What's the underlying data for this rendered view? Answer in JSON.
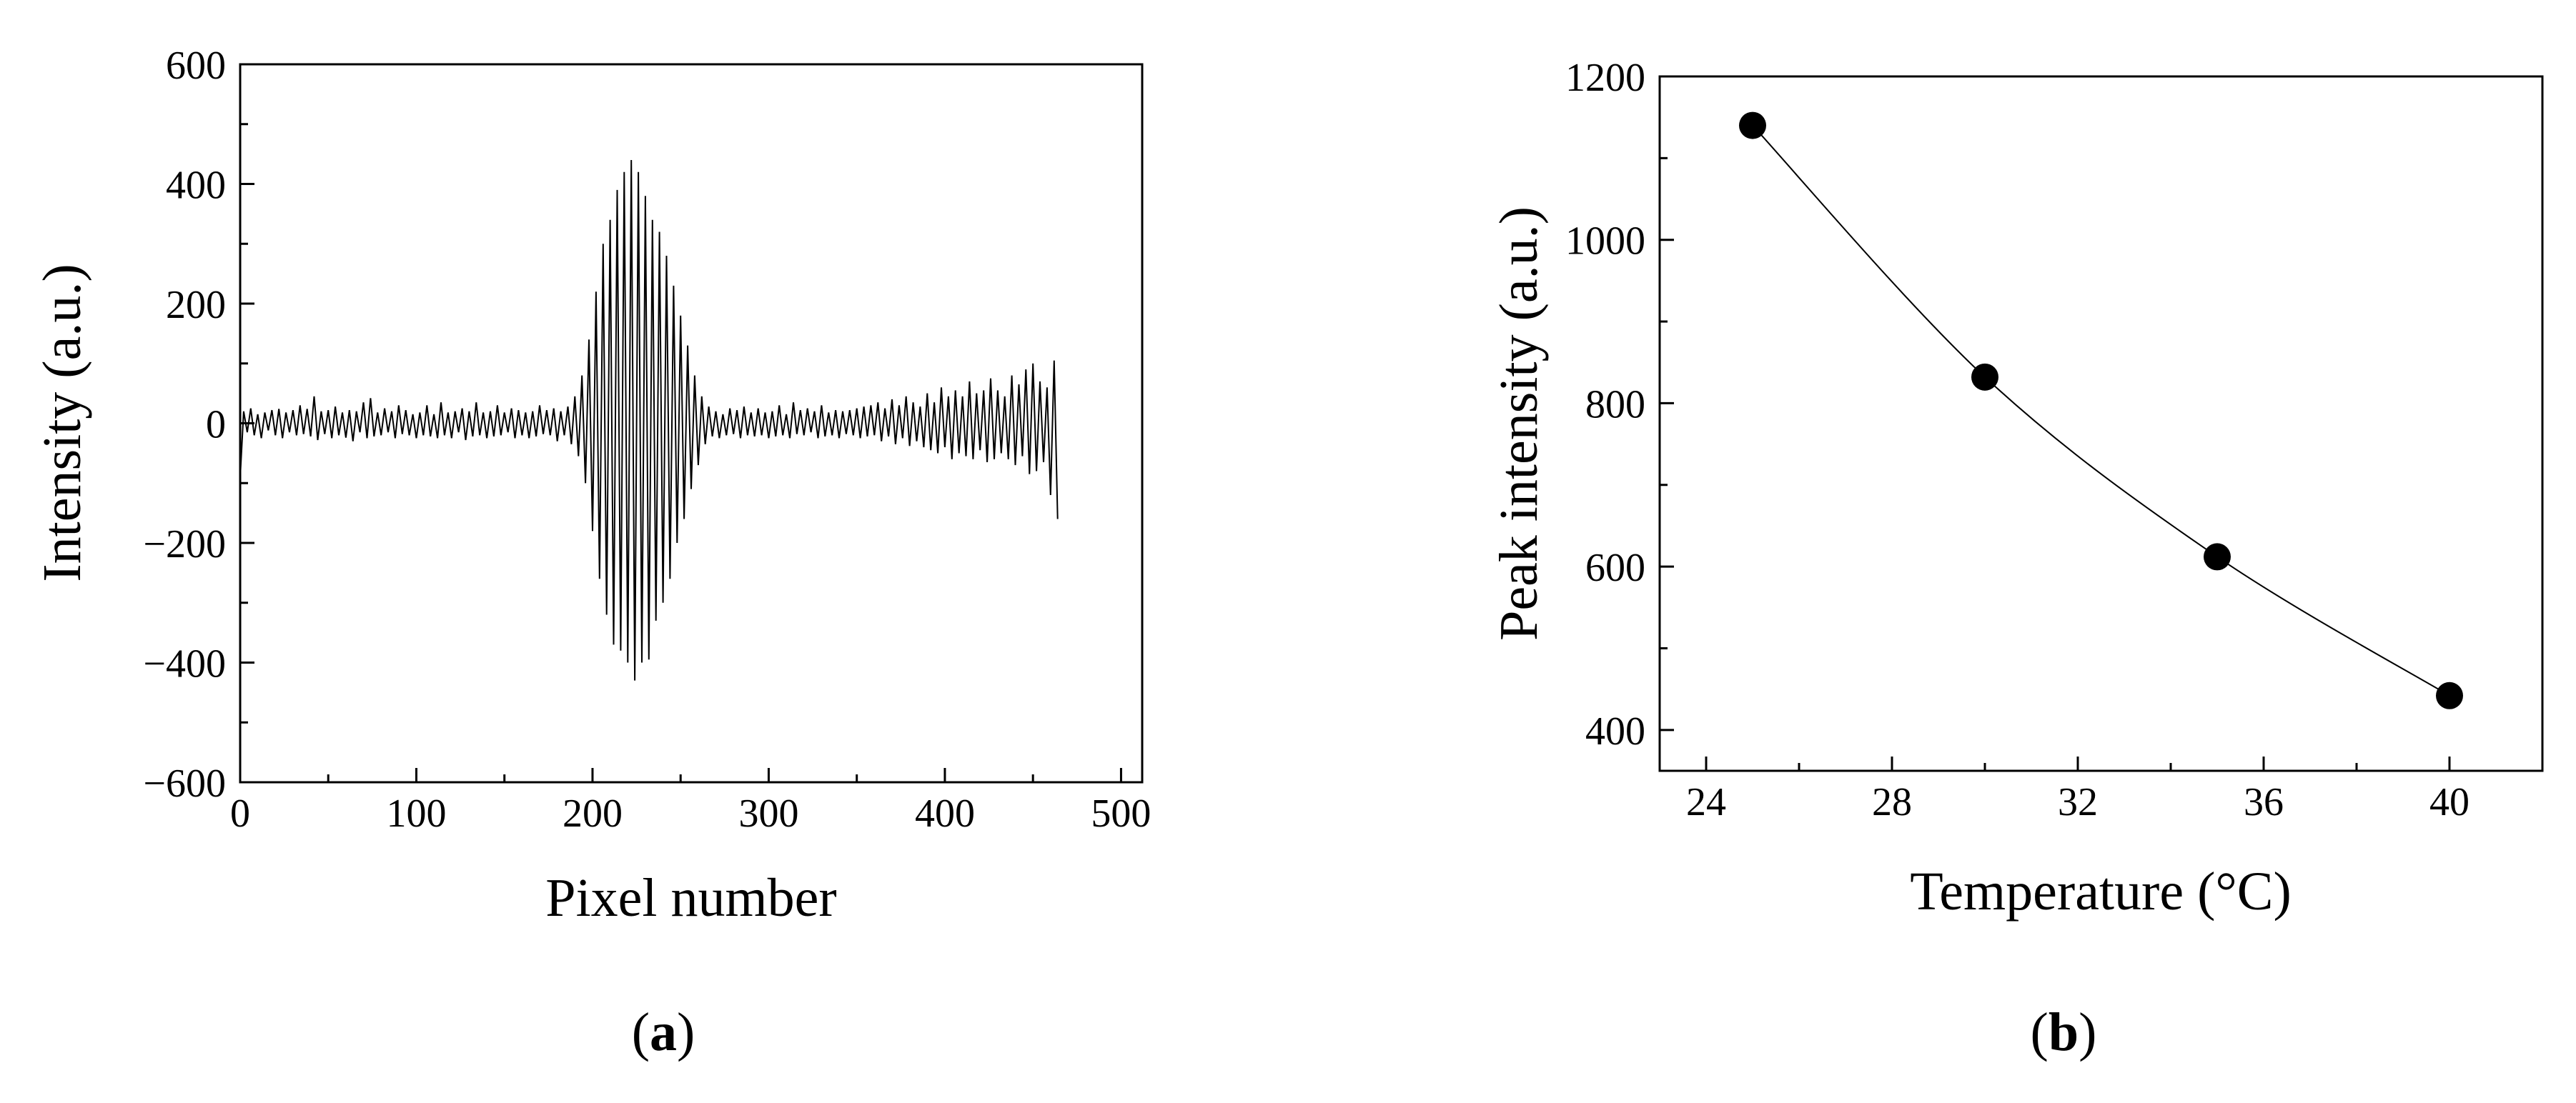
{
  "figure": {
    "panel_a_label": {
      "open": "(",
      "letter": "a",
      "close": ")"
    },
    "panel_b_label": {
      "open": "(",
      "letter": "b",
      "close": ")"
    }
  },
  "chart_data": [
    {
      "type": "line",
      "panel": "a",
      "xlabel": "Pixel number",
      "ylabel": "Intensity (a.u.)",
      "xlim": [
        0,
        512
      ],
      "ylim": [
        -600,
        600
      ],
      "xticks": [
        0,
        100,
        200,
        300,
        400,
        500
      ],
      "xtick_labels": [
        "0",
        "100",
        "200",
        "300",
        "400",
        "500"
      ],
      "yticks": [
        -600,
        -400,
        -200,
        0,
        200,
        400,
        600
      ],
      "ytick_labels": [
        "−600",
        "−400",
        "−200",
        "0",
        "200",
        "400",
        "600"
      ],
      "grid": false,
      "legend": "none",
      "series": [
        {
          "color": "#000000",
          "x_start": 0,
          "x_step": 2,
          "values": [
            -90,
            20,
            -15,
            25,
            -20,
            15,
            -25,
            18,
            -12,
            22,
            -20,
            24,
            -25,
            18,
            -15,
            22,
            -20,
            30,
            -18,
            24,
            -22,
            45,
            -28,
            20,
            -18,
            22,
            -25,
            28,
            -20,
            18,
            -24,
            22,
            -30,
            20,
            -15,
            35,
            -25,
            42,
            -22,
            18,
            -20,
            25,
            -15,
            20,
            -25,
            30,
            -18,
            22,
            -20,
            15,
            -25,
            18,
            -20,
            30,
            -22,
            15,
            -25,
            35,
            -20,
            18,
            -25,
            20,
            -15,
            25,
            -28,
            20,
            -22,
            35,
            -20,
            18,
            -25,
            20,
            -22,
            30,
            -20,
            18,
            -15,
            25,
            -25,
            22,
            -20,
            18,
            -25,
            20,
            -22,
            30,
            -18,
            22,
            -20,
            25,
            -30,
            20,
            -20,
            28,
            -35,
            45,
            -55,
            80,
            -100,
            140,
            -180,
            220,
            -260,
            300,
            -320,
            340,
            -370,
            390,
            -380,
            420,
            -400,
            440,
            -430,
            420,
            -400,
            380,
            -395,
            340,
            -330,
            320,
            -300,
            280,
            -260,
            230,
            -200,
            180,
            -160,
            130,
            -110,
            80,
            -70,
            45,
            -35,
            28,
            -22,
            20,
            -25,
            15,
            -20,
            25,
            -18,
            22,
            -25,
            28,
            -20,
            18,
            -22,
            25,
            -20,
            18,
            -25,
            20,
            -22,
            30,
            -20,
            15,
            -25,
            35,
            -18,
            22,
            -20,
            25,
            -15,
            20,
            -25,
            30,
            -22,
            18,
            -20,
            22,
            -25,
            20,
            -18,
            22,
            -20,
            25,
            -25,
            28,
            -22,
            30,
            -20,
            35,
            -30,
            25,
            -22,
            40,
            -35,
            30,
            -25,
            45,
            -38,
            35,
            -30,
            28,
            -40,
            50,
            -45,
            35,
            -50,
            60,
            -40,
            45,
            -60,
            55,
            -50,
            45,
            -55,
            70,
            -60,
            50,
            -45,
            55,
            -65,
            75,
            -60,
            55,
            -50,
            45,
            -60,
            80,
            -70,
            65,
            -55,
            90,
            -85,
            100,
            -80,
            70,
            -65,
            60,
            -120,
            105,
            -160
          ]
        }
      ]
    },
    {
      "type": "line",
      "panel": "b",
      "xlabel": "Temperature (°C)",
      "ylabel": "Peak intensity (a.u.)",
      "xlim": [
        23,
        42
      ],
      "ylim": [
        350,
        1200
      ],
      "xticks": [
        24,
        28,
        32,
        36,
        40
      ],
      "xtick_labels": [
        "24",
        "28",
        "32",
        "36",
        "40"
      ],
      "yticks": [
        400,
        600,
        800,
        1000,
        1200
      ],
      "ytick_labels": [
        "400",
        "600",
        "800",
        "1000",
        "1200"
      ],
      "grid": false,
      "legend": "none",
      "markers": "filled-circle",
      "x": [
        25,
        30,
        35,
        40
      ],
      "series": [
        {
          "color": "#000000",
          "values": [
            1140,
            832,
            612,
            442
          ]
        }
      ]
    }
  ]
}
